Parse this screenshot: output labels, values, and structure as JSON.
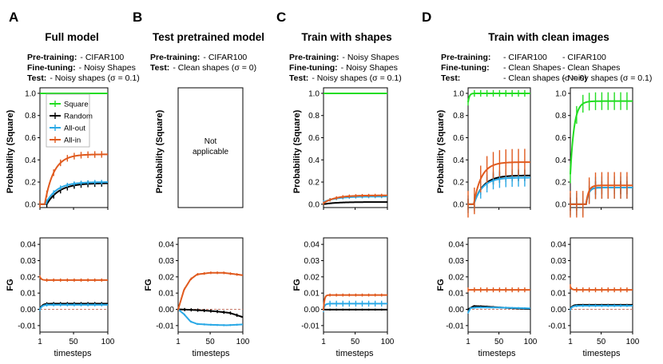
{
  "colors": {
    "square": "#22dd22",
    "random": "#000000",
    "all_out": "#2aa9e6",
    "all_in": "#e05a1e",
    "baseline": "#c87a6a"
  },
  "panels": [
    {
      "letter": "A",
      "title": "Full model",
      "info": [
        {
          "key": "Pre-training:",
          "values": [
            "- CIFAR100"
          ]
        },
        {
          "key": "Fine-tuning:",
          "values": [
            "- Noisy Shapes"
          ]
        },
        {
          "key": "Test:",
          "values": [
            "- Noisy shapes (σ = 0.1)"
          ]
        }
      ]
    },
    {
      "letter": "B",
      "title": "Test pretrained model",
      "info": [
        {
          "key": "Pre-training:",
          "values": [
            "- CIFAR100"
          ]
        },
        {
          "key": "Test:",
          "values": [
            "- Clean shapes (σ = 0)"
          ]
        }
      ],
      "not_applicable": [
        "Not",
        "applicable"
      ]
    },
    {
      "letter": "C",
      "title": "Train with shapes",
      "info": [
        {
          "key": "Pre-training:",
          "values": [
            "- Noisy Shapes"
          ]
        },
        {
          "key": "Fine-tuning:",
          "values": [
            "- Noisy Shapes"
          ]
        },
        {
          "key": "Test:",
          "values": [
            "- Noisy shapes (σ = 0.1)"
          ]
        }
      ]
    },
    {
      "letter": "D",
      "title": "Train with clean images",
      "info": [
        {
          "key": "Pre-training:",
          "values": [
            "- CIFAR100",
            "- CIFAR100"
          ]
        },
        {
          "key": "Fine-tuning:",
          "values": [
            "- Clean Shapes",
            "- Clean Shapes"
          ]
        },
        {
          "key": "Test:",
          "values": [
            "- Clean shapes (σ = 0)",
            "- Noisy shapes (σ = 0.1)"
          ]
        }
      ]
    }
  ],
  "legend": [
    "Square",
    "Random",
    "All-out",
    "All-in"
  ],
  "axes": {
    "prob_ylabel": "Probability (Square)",
    "fg_ylabel": "FG",
    "xlabel": "timesteps",
    "x_ticks": [
      "1",
      "50",
      "100"
    ],
    "prob_ticks": [
      "0.0",
      "0.2",
      "0.4",
      "0.6",
      "0.8",
      "1.0"
    ],
    "fg_ticks": [
      "-0.01",
      "0.00",
      "0.01",
      "0.02",
      "0.03",
      "0.04"
    ]
  },
  "chart_data": [
    {
      "type": "line",
      "id": "A-prob",
      "xlabel": "timesteps",
      "ylabel": "Probability (Square)",
      "xlim": [
        1,
        100
      ],
      "ylim": [
        -0.03,
        1.05
      ],
      "series": [
        {
          "name": "Square",
          "color_key": "square",
          "start": 1.0,
          "end": 1.0,
          "t0": 0,
          "tau": 1,
          "err": 0
        },
        {
          "name": "Random",
          "color_key": "random",
          "start": 0.0,
          "end": 0.19,
          "t0": 10,
          "tau": 18,
          "err": 0.03
        },
        {
          "name": "All-out",
          "color_key": "all_out",
          "start": 0.0,
          "end": 0.2,
          "t0": 8,
          "tau": 16,
          "err": 0.02
        },
        {
          "name": "All-in",
          "color_key": "all_in",
          "start": 0.0,
          "end": 0.45,
          "t0": 7,
          "tau": 13,
          "err": 0.03
        }
      ]
    },
    {
      "type": "line",
      "id": "C-prob",
      "xlabel": "timesteps",
      "ylabel": "Probability (Square)",
      "xlim": [
        1,
        100
      ],
      "ylim": [
        -0.03,
        1.05
      ],
      "series": [
        {
          "name": "Square",
          "color_key": "square",
          "start": 1.0,
          "end": 1.0,
          "t0": 0,
          "tau": 1,
          "err": 0
        },
        {
          "name": "Random",
          "color_key": "random",
          "start": 0.0,
          "end": 0.02,
          "t0": 0,
          "tau": 20,
          "err": 0
        },
        {
          "name": "All-out",
          "color_key": "all_out",
          "start": 0.02,
          "end": 0.07,
          "t0": 0,
          "tau": 20,
          "err": 0.015
        },
        {
          "name": "All-in",
          "color_key": "all_in",
          "start": 0.01,
          "end": 0.08,
          "t0": 0,
          "tau": 18,
          "err": 0.015
        }
      ]
    },
    {
      "type": "line",
      "id": "D1-prob",
      "xlabel": "timesteps",
      "ylabel": "Probability (Square)",
      "xlim": [
        1,
        100
      ],
      "ylim": [
        -0.03,
        1.05
      ],
      "series": [
        {
          "name": "Square",
          "color_key": "square",
          "start": 0.92,
          "end": 1.0,
          "t0": 0,
          "tau": 2,
          "err": 0.03
        },
        {
          "name": "Random",
          "color_key": "random",
          "start": 0.0,
          "end": 0.26,
          "t0": 9,
          "tau": 15,
          "err": 0.05
        },
        {
          "name": "All-out",
          "color_key": "all_out",
          "start": 0.0,
          "end": 0.24,
          "t0": 9,
          "tau": 14,
          "err": 0.08
        },
        {
          "name": "All-in",
          "color_key": "all_in",
          "start": 0.0,
          "end": 0.38,
          "t0": 9,
          "tau": 12,
          "err": 0.12
        }
      ]
    },
    {
      "type": "line",
      "id": "D2-prob",
      "xlabel": "timesteps",
      "ylabel": "",
      "xlim": [
        1,
        100
      ],
      "ylim": [
        -0.03,
        1.05
      ],
      "series": [
        {
          "name": "Square",
          "color_key": "square",
          "start": 0.27,
          "end": 0.93,
          "t0": 0,
          "tau": 6,
          "err": 0.08
        },
        {
          "name": "Random",
          "color_key": "random",
          "start": 0.0,
          "end": 0.15,
          "t0": 25,
          "tau": 4,
          "err": 0.06
        },
        {
          "name": "All-out",
          "color_key": "all_out",
          "start": 0.0,
          "end": 0.15,
          "t0": 25,
          "tau": 4,
          "err": 0.1
        },
        {
          "name": "All-in",
          "color_key": "all_in",
          "start": 0.0,
          "end": 0.17,
          "t0": 25,
          "tau": 4,
          "err": 0.12
        }
      ]
    },
    {
      "type": "line",
      "id": "A-fg",
      "xlabel": "timesteps",
      "ylabel": "FG",
      "xlim": [
        1,
        100
      ],
      "ylim": [
        -0.014,
        0.044
      ],
      "series": [
        {
          "name": "Random",
          "color_key": "random",
          "start": 0.0,
          "end": 0.0035,
          "t0": 0,
          "tau": 3,
          "err": 0.001
        },
        {
          "name": "All-out",
          "color_key": "all_out",
          "start": 0.0,
          "end": 0.0028,
          "t0": 0,
          "tau": 3,
          "err": 0.001
        },
        {
          "name": "All-in",
          "color_key": "all_in",
          "start": 0.02,
          "end": 0.018,
          "t0": 0,
          "tau": 2,
          "err": 0.001
        }
      ],
      "baseline": 0
    },
    {
      "type": "line",
      "id": "B-fg",
      "xlabel": "timesteps",
      "ylabel": "FG",
      "xlim": [
        1,
        100
      ],
      "ylim": [
        -0.014,
        0.044
      ],
      "series": [
        {
          "name": "Random",
          "color_key": "random",
          "points": [
            [
              1,
              0.0
            ],
            [
              20,
              -0.0003
            ],
            [
              40,
              -0.0007
            ],
            [
              60,
              -0.0013
            ],
            [
              80,
              -0.0022
            ],
            [
              90,
              -0.0035
            ],
            [
              100,
              -0.0048
            ]
          ],
          "err": 0.001
        },
        {
          "name": "All-out",
          "color_key": "all_out",
          "points": [
            [
              1,
              0.0
            ],
            [
              10,
              -0.003
            ],
            [
              20,
              -0.0075
            ],
            [
              30,
              -0.009
            ],
            [
              50,
              -0.0095
            ],
            [
              75,
              -0.0098
            ],
            [
              100,
              -0.0093
            ]
          ],
          "err": 0.0006
        },
        {
          "name": "All-in",
          "color_key": "all_in",
          "points": [
            [
              1,
              0.0
            ],
            [
              10,
              0.012
            ],
            [
              20,
              0.0185
            ],
            [
              30,
              0.0215
            ],
            [
              50,
              0.0225
            ],
            [
              70,
              0.0225
            ],
            [
              85,
              0.0218
            ],
            [
              100,
              0.021
            ]
          ],
          "err": 0.0008
        }
      ],
      "baseline": 0
    },
    {
      "type": "line",
      "id": "C-fg",
      "xlabel": "timesteps",
      "ylabel": "FG",
      "xlim": [
        1,
        100
      ],
      "ylim": [
        -0.014,
        0.044
      ],
      "series": [
        {
          "name": "Random",
          "color_key": "random",
          "start": 0.0,
          "end": -0.0002,
          "t0": 0,
          "tau": 2,
          "err": 0.0006
        },
        {
          "name": "All-out",
          "color_key": "all_out",
          "start": 0.0,
          "end": 0.0035,
          "t0": 0,
          "tau": 2,
          "err": 0.0018
        },
        {
          "name": "All-in",
          "color_key": "all_in",
          "start": 0.0,
          "end": 0.0088,
          "t0": 0,
          "tau": 1.5,
          "err": 0.0009
        }
      ],
      "baseline": 0
    },
    {
      "type": "line",
      "id": "D1-fg",
      "xlabel": "timesteps",
      "ylabel": "FG",
      "xlim": [
        1,
        100
      ],
      "ylim": [
        -0.014,
        0.044
      ],
      "series": [
        {
          "name": "Random",
          "color_key": "random",
          "points": [
            [
              1,
              0.0
            ],
            [
              10,
              0.002
            ],
            [
              25,
              0.0018
            ],
            [
              50,
              0.0012
            ],
            [
              75,
              0.0006
            ],
            [
              100,
              0.0002
            ]
          ],
          "err": 0.0006
        },
        {
          "name": "All-out",
          "color_key": "all_out",
          "points": [
            [
              1,
              -0.002
            ],
            [
              5,
              0.0008
            ],
            [
              15,
              0.0012
            ],
            [
              50,
              0.0011
            ],
            [
              100,
              0.0006
            ]
          ],
          "err": 0.0006
        },
        {
          "name": "All-in",
          "color_key": "all_in",
          "start": 0.012,
          "end": 0.012,
          "t0": 0,
          "tau": 1,
          "err": 0.0015
        }
      ],
      "baseline": 0
    },
    {
      "type": "line",
      "id": "D2-fg",
      "xlabel": "timesteps",
      "ylabel": "",
      "xlim": [
        1,
        100
      ],
      "ylim": [
        -0.014,
        0.044
      ],
      "series": [
        {
          "name": "Random",
          "color_key": "random",
          "start": 0.0,
          "end": 0.0028,
          "t0": 0,
          "tau": 3,
          "err": 0.0005
        },
        {
          "name": "All-out",
          "color_key": "all_out",
          "start": 0.0,
          "end": 0.0022,
          "t0": 0,
          "tau": 3,
          "err": 0.0008
        },
        {
          "name": "All-in",
          "color_key": "all_in",
          "start": 0.014,
          "end": 0.012,
          "t0": 0,
          "tau": 2,
          "err": 0.0015
        }
      ],
      "baseline": 0
    }
  ]
}
